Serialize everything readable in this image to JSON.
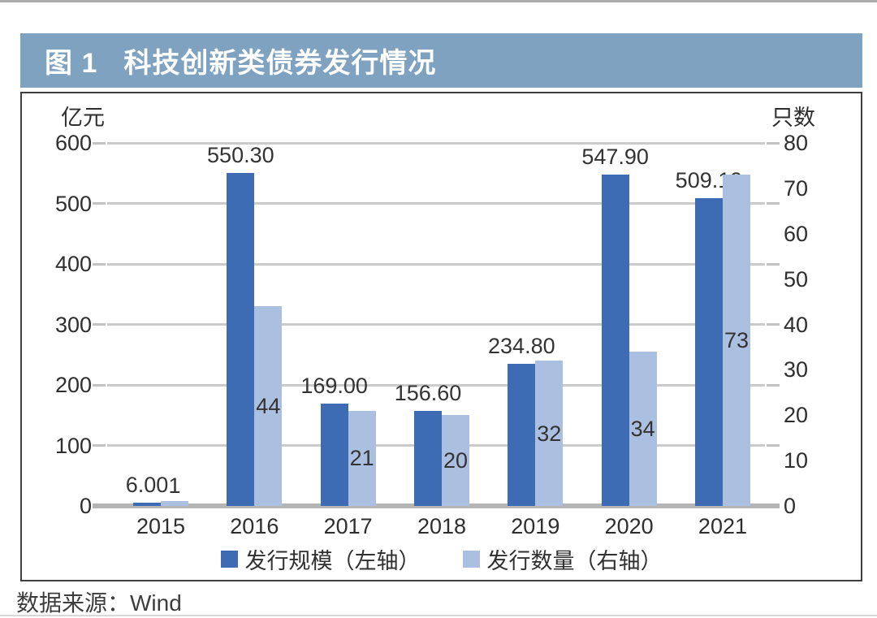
{
  "page": {
    "title_bar": {
      "figure_label": "图 1",
      "title": "科技创新类债券发行情况",
      "bg_color": "#7EA2BF",
      "text_color": "#FFFFFF"
    },
    "source": "数据来源：Wind"
  },
  "chart_data": {
    "type": "bar",
    "title": "科技创新类债券发行情况",
    "categories": [
      "2015",
      "2016",
      "2017",
      "2018",
      "2019",
      "2020",
      "2021"
    ],
    "series": [
      {
        "name": "发行规模（左轴）",
        "axis": "left",
        "color": "#3D6CB5",
        "values": [
          6.0,
          550.3,
          169.0,
          156.6,
          234.8,
          547.9,
          509.19
        ],
        "labels": [
          "6.00",
          "550.30",
          "169.00",
          "156.60",
          "234.80",
          "547.90",
          "509.19"
        ]
      },
      {
        "name": "发行数量（右轴）",
        "axis": "right",
        "color": "#ABC0E0",
        "values": [
          1,
          44,
          21,
          20,
          32,
          34,
          73
        ],
        "labels": [
          "1",
          "44",
          "21",
          "20",
          "32",
          "34",
          "73"
        ]
      }
    ],
    "left_axis": {
      "title": "亿元",
      "min": 0,
      "max": 600,
      "step": 100
    },
    "right_axis": {
      "title": "只数",
      "min": 0,
      "max": 80,
      "step": 10
    },
    "grid": true,
    "legend_position": "bottom",
    "grid_color": "#CBCBCB",
    "baseline_color": "#B5B5B5"
  }
}
